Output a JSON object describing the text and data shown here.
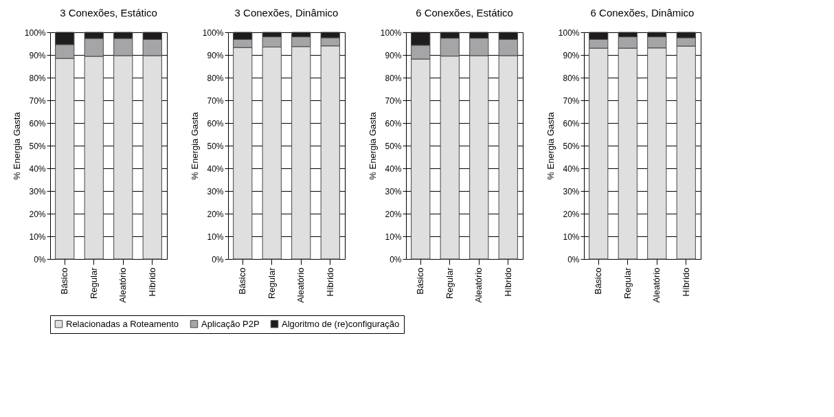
{
  "chart_data": [
    {
      "type": "bar",
      "title": "3 Conexões, Estático",
      "ylabel": "% Energia Gasta",
      "categories": [
        "Básico",
        "Regular",
        "Aleatório",
        "Híbrido"
      ],
      "stacked": true,
      "grid": "y",
      "legend": "bottom",
      "ylim": [
        0,
        100
      ],
      "yticks": [
        {
          "value": 0,
          "label": "0%"
        },
        {
          "value": 10,
          "label": "10%"
        },
        {
          "value": 20,
          "label": "20%"
        },
        {
          "value": 30,
          "label": "30%"
        },
        {
          "value": 40,
          "label": "40%"
        },
        {
          "value": 50,
          "label": "50%"
        },
        {
          "value": 60,
          "label": "60%"
        },
        {
          "value": 70,
          "label": "70%"
        },
        {
          "value": 80,
          "label": "80%"
        },
        {
          "value": 90,
          "label": "90%"
        },
        {
          "value": 100,
          "label": "100%"
        }
      ],
      "series": [
        {
          "name": "Relacionadas a Roteamento",
          "color": "#dfdfe0",
          "values": [
            88.5,
            89.4,
            89.7,
            89.7
          ]
        },
        {
          "name": "Aplicação P2P",
          "color": "#a5a5a7",
          "values": [
            6.1,
            7.9,
            7.6,
            7.2
          ]
        },
        {
          "name": "Algoritmo de (re)configuração",
          "color": "#1e1c1c",
          "values": [
            5.4,
            2.7,
            2.7,
            3.1
          ]
        }
      ]
    },
    {
      "type": "bar",
      "title": "3 Conexões, Dinâmico",
      "ylabel": "% Energia Gasta",
      "categories": [
        "Básico",
        "Regular",
        "Aleatório",
        "Híbrido"
      ],
      "stacked": true,
      "grid": "y",
      "legend": "bottom",
      "ylim": [
        0,
        100
      ],
      "yticks": [
        {
          "value": 0,
          "label": "0%"
        },
        {
          "value": 10,
          "label": "10%"
        },
        {
          "value": 20,
          "label": "20%"
        },
        {
          "value": 30,
          "label": "30%"
        },
        {
          "value": 40,
          "label": "40%"
        },
        {
          "value": 50,
          "label": "50%"
        },
        {
          "value": 60,
          "label": "60%"
        },
        {
          "value": 70,
          "label": "70%"
        },
        {
          "value": 80,
          "label": "80%"
        },
        {
          "value": 90,
          "label": "90%"
        },
        {
          "value": 100,
          "label": "100%"
        }
      ],
      "series": [
        {
          "name": "Relacionadas a Roteamento",
          "color": "#dfdfe0",
          "values": [
            93.3,
            93.5,
            93.7,
            94.0
          ]
        },
        {
          "name": "Aplicação P2P",
          "color": "#a5a5a7",
          "values": [
            3.6,
            4.5,
            4.3,
            3.6
          ]
        },
        {
          "name": "Algoritmo de (re)configuração",
          "color": "#1e1c1c",
          "values": [
            3.1,
            2.0,
            2.0,
            2.4
          ]
        }
      ]
    },
    {
      "type": "bar",
      "title": "6 Conexões, Estático",
      "ylabel": "% Energia Gasta",
      "categories": [
        "Básico",
        "Regular",
        "Aleatório",
        "Híbrido"
      ],
      "stacked": true,
      "grid": "y",
      "legend": "bottom",
      "ylim": [
        0,
        100
      ],
      "yticks": [
        {
          "value": 0,
          "label": "0%"
        },
        {
          "value": 10,
          "label": "10%"
        },
        {
          "value": 20,
          "label": "20%"
        },
        {
          "value": 30,
          "label": "30%"
        },
        {
          "value": 40,
          "label": "40%"
        },
        {
          "value": 50,
          "label": "50%"
        },
        {
          "value": 60,
          "label": "60%"
        },
        {
          "value": 70,
          "label": "70%"
        },
        {
          "value": 80,
          "label": "80%"
        },
        {
          "value": 90,
          "label": "90%"
        },
        {
          "value": 100,
          "label": "100%"
        }
      ],
      "series": [
        {
          "name": "Relacionadas a Roteamento",
          "color": "#dfdfe0",
          "values": [
            88.2,
            89.5,
            89.7,
            89.7
          ]
        },
        {
          "name": "Aplicação P2P",
          "color": "#a5a5a7",
          "values": [
            6.1,
            7.9,
            7.7,
            7.2
          ]
        },
        {
          "name": "Algoritmo de (re)configuração",
          "color": "#1e1c1c",
          "values": [
            5.7,
            2.6,
            2.6,
            3.1
          ]
        }
      ]
    },
    {
      "type": "bar",
      "title": "6 Conexões, Dinâmico",
      "ylabel": "% Energia Gasta",
      "categories": [
        "Básico",
        "Regular",
        "Aleatório",
        "Híbrido"
      ],
      "stacked": true,
      "grid": "y",
      "legend": "bottom",
      "ylim": [
        0,
        100
      ],
      "yticks": [
        {
          "value": 0,
          "label": "0%"
        },
        {
          "value": 10,
          "label": "10%"
        },
        {
          "value": 20,
          "label": "20%"
        },
        {
          "value": 30,
          "label": "30%"
        },
        {
          "value": 40,
          "label": "40%"
        },
        {
          "value": 50,
          "label": "50%"
        },
        {
          "value": 60,
          "label": "60%"
        },
        {
          "value": 70,
          "label": "70%"
        },
        {
          "value": 80,
          "label": "80%"
        },
        {
          "value": 90,
          "label": "90%"
        },
        {
          "value": 100,
          "label": "100%"
        }
      ],
      "series": [
        {
          "name": "Relacionadas a Roteamento",
          "color": "#dfdfe0",
          "values": [
            93.0,
            93.0,
            93.1,
            93.9
          ]
        },
        {
          "name": "Aplicação P2P",
          "color": "#a5a5a7",
          "values": [
            3.9,
            5.0,
            4.9,
            3.7
          ]
        },
        {
          "name": "Algoritmo de (re)configuração",
          "color": "#1e1c1c",
          "values": [
            3.1,
            2.0,
            2.0,
            2.4
          ]
        }
      ]
    }
  ]
}
